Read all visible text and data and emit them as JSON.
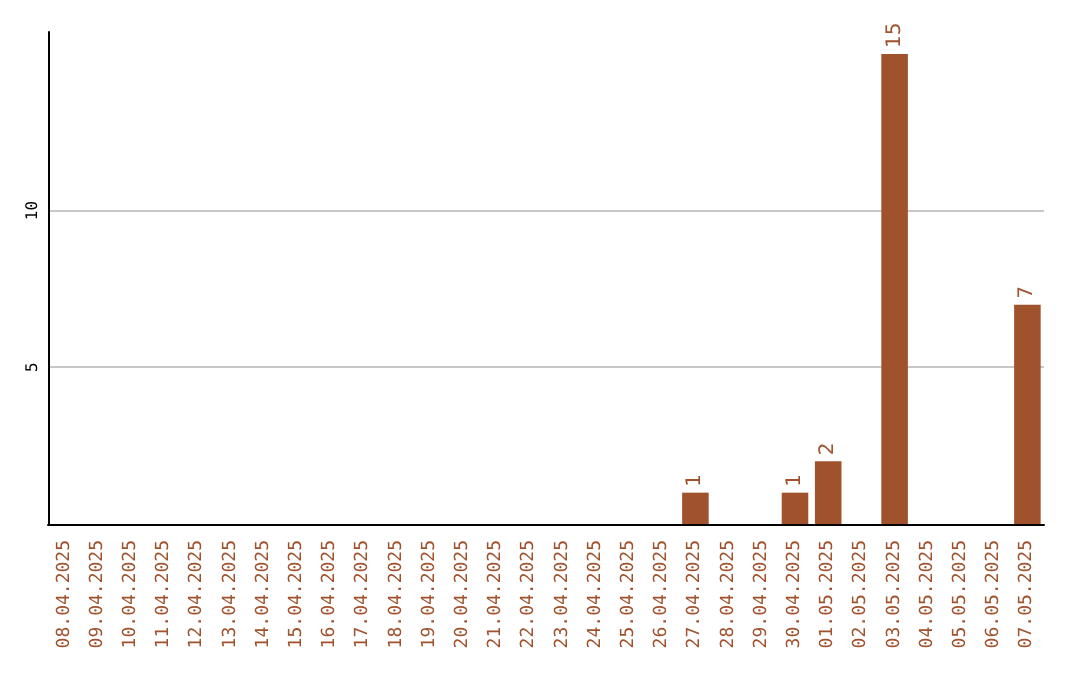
{
  "chart_data": {
    "type": "bar",
    "categories": [
      "08.04.2025",
      "09.04.2025",
      "10.04.2025",
      "11.04.2025",
      "12.04.2025",
      "13.04.2025",
      "14.04.2025",
      "15.04.2025",
      "16.04.2025",
      "17.04.2025",
      "18.04.2025",
      "19.04.2025",
      "20.04.2025",
      "21.04.2025",
      "22.04.2025",
      "23.04.2025",
      "24.04.2025",
      "25.04.2025",
      "26.04.2025",
      "27.04.2025",
      "28.04.2025",
      "29.04.2025",
      "30.04.2025",
      "01.05.2025",
      "02.05.2025",
      "03.05.2025",
      "04.05.2025",
      "05.05.2025",
      "06.05.2025",
      "07.05.2025"
    ],
    "values": [
      0,
      0,
      0,
      0,
      0,
      0,
      0,
      0,
      0,
      0,
      0,
      0,
      0,
      0,
      0,
      0,
      0,
      0,
      0,
      1,
      0,
      0,
      1,
      2,
      0,
      15,
      0,
      0,
      0,
      7
    ],
    "value_labels": [
      null,
      null,
      null,
      null,
      null,
      null,
      null,
      null,
      null,
      null,
      null,
      null,
      null,
      null,
      null,
      null,
      null,
      null,
      null,
      "1",
      null,
      null,
      "1",
      "2",
      null,
      "15",
      null,
      null,
      null,
      "7"
    ],
    "color": "#a0522d",
    "ylim": [
      0,
      15.7
    ],
    "yticks": [
      5,
      10
    ],
    "grid": "y"
  }
}
